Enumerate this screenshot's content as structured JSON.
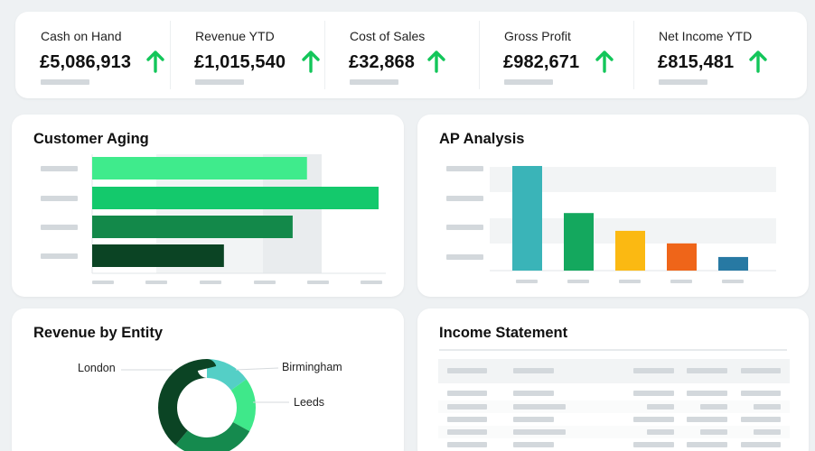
{
  "kpis": [
    {
      "label": "Cash on Hand",
      "value": "£5,086,913",
      "trend_icon": "arrow-up-icon"
    },
    {
      "label": "Revenue YTD",
      "value": "£1,015,540",
      "trend_icon": "arrow-up-icon"
    },
    {
      "label": "Cost of Sales",
      "value": "£32,868",
      "trend_icon": "arrow-up-icon"
    },
    {
      "label": "Gross Profit",
      "value": "£982,671",
      "trend_icon": "arrow-up-icon"
    },
    {
      "label": "Net Income YTD",
      "value": "£815,481",
      "trend_icon": "arrow-up-icon"
    }
  ],
  "colors": {
    "trend_up": "#13c65a",
    "placeholder": "#d3d8dc",
    "band": "#f2f4f5"
  },
  "customer_aging": {
    "title": "Customer Aging",
    "chart_data": {
      "type": "bar",
      "orientation": "horizontal",
      "title": "",
      "categories": [
        "",
        "",
        "",
        ""
      ],
      "values": [
        0.75,
        1.0,
        0.7,
        0.46
      ],
      "value_scale": "relative to largest bar",
      "colors": [
        "#3feb8c",
        "#14c96c",
        "#13894a",
        "#0b4424"
      ],
      "grid": true
    }
  },
  "ap_analysis": {
    "title": "AP Analysis",
    "chart_data": {
      "type": "bar",
      "orientation": "vertical",
      "title": "",
      "categories": [
        "",
        "",
        "",
        "",
        ""
      ],
      "values": [
        1.0,
        0.55,
        0.38,
        0.26,
        0.13
      ],
      "value_scale": "relative to largest bar",
      "colors": [
        "#3ab4b8",
        "#14a85e",
        "#fbb912",
        "#ef6519",
        "#2779a3"
      ],
      "grid": true
    }
  },
  "revenue_by_entity": {
    "title": "Revenue by Entity",
    "chart_data": {
      "type": "pie",
      "donut": true,
      "title": "",
      "slices": [
        {
          "label": "Birmingham",
          "value": 15,
          "color": "#54cfc6"
        },
        {
          "label": "Leeds",
          "value": 18,
          "color": "#3fe88a"
        },
        {
          "label": "",
          "value": 28,
          "color": "#158a4e"
        },
        {
          "label": "London",
          "value": 39,
          "color": "#0b4424"
        }
      ]
    }
  },
  "income_statement": {
    "title": "Income Statement",
    "chart_data": {
      "type": "table",
      "columns": 5,
      "rows_visible": 6,
      "cells": "placeholder"
    }
  }
}
